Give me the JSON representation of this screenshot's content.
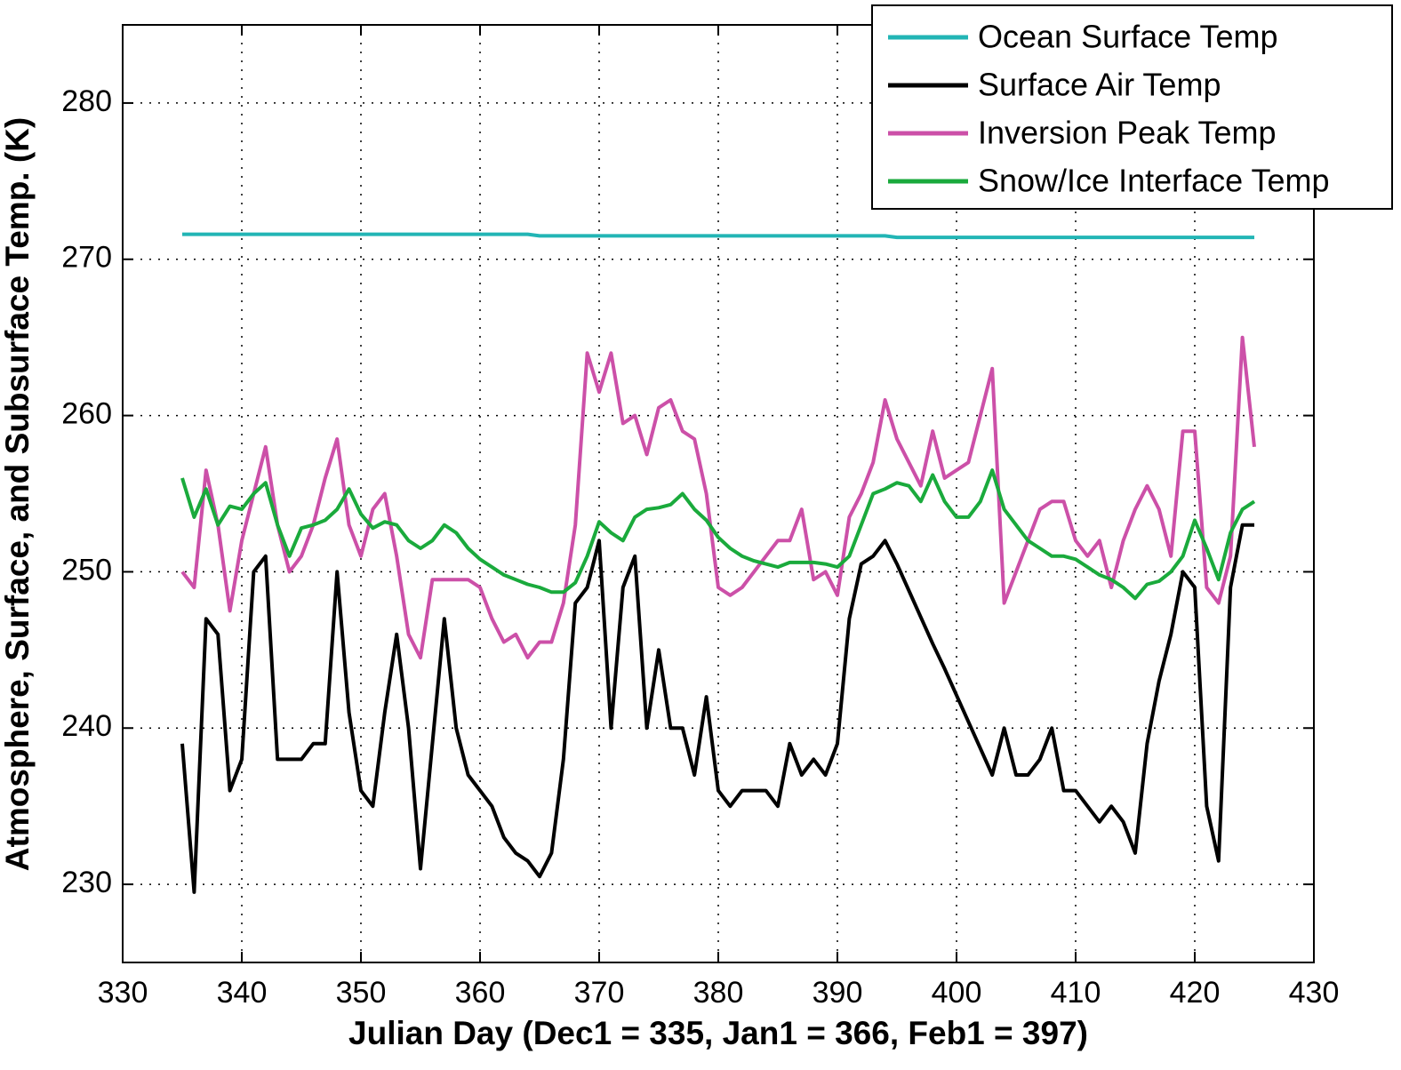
{
  "chart_data": {
    "type": "line",
    "xlabel": "Julian Day (Dec1 = 335, Jan1 = 366, Feb1 = 397)",
    "ylabel": "Atmosphere, Surface, and Subsurface Temp. (K)",
    "x": [
      335,
      336,
      337,
      338,
      339,
      340,
      341,
      342,
      343,
      344,
      345,
      346,
      347,
      348,
      349,
      350,
      351,
      352,
      353,
      354,
      355,
      356,
      357,
      358,
      359,
      360,
      361,
      362,
      363,
      364,
      365,
      366,
      367,
      368,
      369,
      370,
      371,
      372,
      373,
      374,
      375,
      376,
      377,
      378,
      379,
      380,
      381,
      382,
      383,
      384,
      385,
      386,
      387,
      388,
      389,
      390,
      391,
      392,
      393,
      394,
      395,
      396,
      397,
      398,
      399,
      400,
      401,
      402,
      403,
      404,
      405,
      406,
      407,
      408,
      409,
      410,
      411,
      412,
      413,
      414,
      415,
      416,
      417,
      418,
      419,
      420,
      421,
      422,
      423,
      424,
      425
    ],
    "series": [
      {
        "name": "Ocean Surface Temp",
        "color": "#22b5b5",
        "values": [
          271.6,
          271.6,
          271.6,
          271.6,
          271.6,
          271.6,
          271.6,
          271.6,
          271.6,
          271.6,
          271.6,
          271.6,
          271.6,
          271.6,
          271.6,
          271.6,
          271.6,
          271.6,
          271.6,
          271.6,
          271.6,
          271.6,
          271.6,
          271.6,
          271.6,
          271.6,
          271.6,
          271.6,
          271.6,
          271.6,
          271.5,
          271.5,
          271.5,
          271.5,
          271.5,
          271.5,
          271.5,
          271.5,
          271.5,
          271.5,
          271.5,
          271.5,
          271.5,
          271.5,
          271.5,
          271.5,
          271.5,
          271.5,
          271.5,
          271.5,
          271.5,
          271.5,
          271.5,
          271.5,
          271.5,
          271.5,
          271.5,
          271.5,
          271.5,
          271.5,
          271.4,
          271.4,
          271.4,
          271.4,
          271.4,
          271.4,
          271.4,
          271.4,
          271.4,
          271.4,
          271.4,
          271.4,
          271.4,
          271.4,
          271.4,
          271.4,
          271.4,
          271.4,
          271.4,
          271.4,
          271.4,
          271.4,
          271.4,
          271.4,
          271.4,
          271.4,
          271.4,
          271.4,
          271.4,
          271.4,
          271.4
        ]
      },
      {
        "name": "Surface Air Temp",
        "color": "#000000",
        "values": [
          239,
          229.5,
          247,
          246,
          236,
          238,
          250,
          251,
          238,
          238,
          238,
          239,
          239,
          250,
          241,
          236,
          235,
          241,
          246,
          240,
          231,
          239,
          247,
          240,
          237,
          236,
          235,
          233,
          232,
          231.5,
          230.5,
          232,
          238,
          248,
          249,
          252,
          240,
          249,
          251,
          240,
          245,
          240,
          240,
          237,
          242,
          236,
          235,
          236,
          236,
          236,
          235,
          239,
          237,
          238,
          237,
          239,
          247,
          250.5,
          251,
          252,
          250.5,
          248.8,
          247.1,
          245.4,
          243.8,
          242.1,
          240.4,
          238.7,
          237,
          240,
          237,
          237,
          238,
          240,
          236,
          236,
          235,
          234,
          235,
          234,
          232,
          239,
          243,
          246,
          250,
          249,
          235,
          231.5,
          249,
          253,
          253
        ]
      },
      {
        "name": "Inversion Peak Temp",
        "color": "#cc50a8",
        "values": [
          250,
          249,
          256.5,
          253,
          247.5,
          252,
          255,
          258,
          253,
          250,
          251,
          253,
          256,
          258.5,
          253,
          251,
          254,
          255,
          251,
          246,
          244.5,
          249.5,
          249.5,
          249.5,
          249.5,
          249,
          247,
          245.5,
          246,
          244.5,
          245.5,
          245.5,
          248,
          253,
          264,
          261.5,
          264,
          259.5,
          260,
          257.5,
          260.5,
          261,
          259,
          258.5,
          255,
          249,
          248.5,
          249,
          250,
          251,
          252,
          252,
          254,
          249.5,
          250,
          248.5,
          253.5,
          255,
          257,
          261,
          258.5,
          257,
          255.5,
          259,
          256,
          256.5,
          257,
          260,
          263,
          248,
          250,
          252,
          254,
          254.5,
          254.5,
          252,
          251,
          252,
          249,
          252,
          254,
          255.5,
          254,
          251,
          259,
          259,
          249,
          248,
          251,
          265,
          258
        ]
      },
      {
        "name": "Snow/Ice Interface Temp",
        "color": "#1aaa3c",
        "values": [
          256,
          253.5,
          255.3,
          253,
          254.2,
          254,
          255,
          255.7,
          253,
          251,
          252.8,
          253,
          253.3,
          254,
          255.3,
          253.7,
          252.8,
          253.2,
          253,
          252,
          251.5,
          252,
          253,
          252.5,
          251.5,
          250.8,
          250.3,
          249.8,
          249.5,
          249.2,
          249,
          248.7,
          248.7,
          249.3,
          251,
          253.2,
          252.5,
          252,
          253.5,
          254,
          254.1,
          254.3,
          255,
          254,
          253.3,
          252.2,
          251.5,
          251,
          250.7,
          250.5,
          250.3,
          250.6,
          250.6,
          250.6,
          250.5,
          250.3,
          251,
          253,
          255,
          255.3,
          255.7,
          255.5,
          254.5,
          256.2,
          254.5,
          253.5,
          253.5,
          254.5,
          256.5,
          254,
          253,
          252,
          251.5,
          251,
          251,
          250.8,
          250.3,
          249.8,
          249.5,
          249,
          248.3,
          249.2,
          249.4,
          250,
          251,
          253.3,
          251.5,
          249.5,
          252.5,
          254,
          254.5
        ]
      }
    ],
    "xlim": [
      330,
      430
    ],
    "xticks": [
      330,
      340,
      350,
      360,
      370,
      380,
      390,
      400,
      410,
      420,
      430
    ],
    "ylim": [
      225,
      285
    ],
    "yticks": [
      230,
      240,
      250,
      260,
      270,
      280
    ],
    "grid": true,
    "legend": "upper right"
  }
}
